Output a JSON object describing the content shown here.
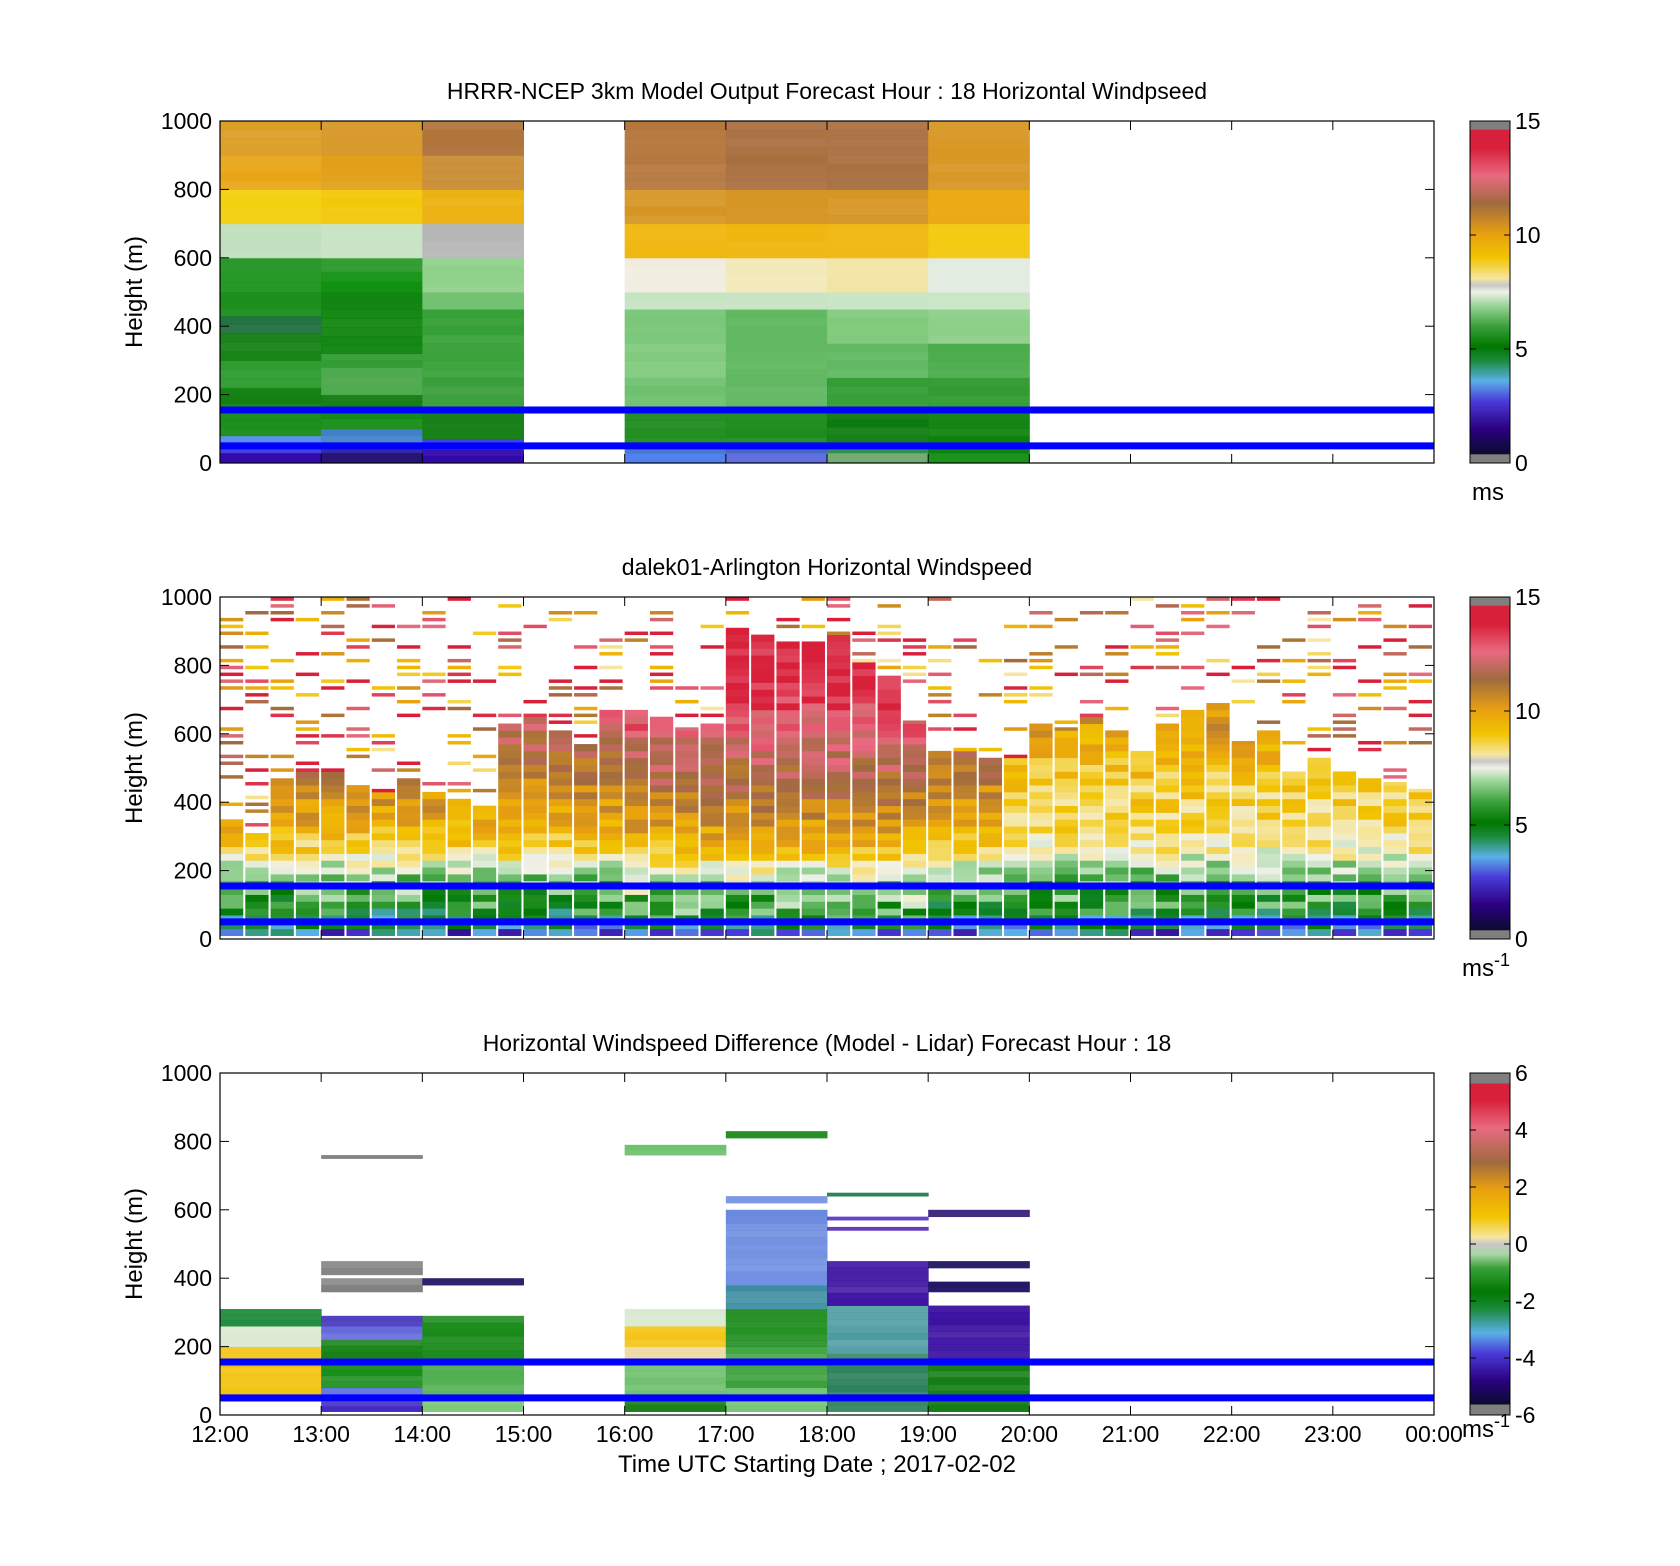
{
  "chart_data": [
    {
      "type": "heatmap",
      "title": "HRRR-NCEP 3km Model Output   Forecast Hour : 18 Horizontal Windpseed",
      "xlabel": "",
      "ylabel": "Height (m)",
      "xlim": [
        12,
        24
      ],
      "ylim": [
        0,
        1000
      ],
      "x_tick_labels": [],
      "y_ticks": [
        0,
        200,
        400,
        600,
        800,
        1000
      ],
      "grid": false,
      "colorbar": {
        "min": 0,
        "max": 15,
        "ticks": [
          0,
          5,
          10,
          15
        ],
        "unit_label": "ms",
        "unit_sup": ""
      },
      "reference_lines_m": [
        50,
        155
      ],
      "reference_line_color": "#0000ff",
      "columns": [
        {
          "hour": 12,
          "profile": [
            [
              0,
              "#2a00a8"
            ],
            [
              30,
              "#3a3ae0"
            ],
            [
              50,
              "#5088e8"
            ],
            [
              80,
              "#138a13"
            ],
            [
              150,
              "#0f7f0f"
            ],
            [
              220,
              "#2a9a2a"
            ],
            [
              300,
              "#128012"
            ],
            [
              380,
              "#1e6e3c"
            ],
            [
              430,
              "#138a13"
            ],
            [
              500,
              "#169016"
            ],
            [
              560,
              "#2a982a"
            ],
            [
              600,
              "#c0dfbc"
            ],
            [
              700,
              "#f2cf0a"
            ],
            [
              800,
              "#e9a516"
            ],
            [
              900,
              "#dc9c22"
            ]
          ]
        },
        {
          "hour": 13,
          "profile": [
            [
              0,
              "#1a0870"
            ],
            [
              30,
              "#2a20a0"
            ],
            [
              60,
              "#4080c8"
            ],
            [
              100,
              "#138a13"
            ],
            [
              160,
              "#0d7a0d"
            ],
            [
              200,
              "#4aa84a"
            ],
            [
              280,
              "#2c9a2c"
            ],
            [
              320,
              "#0a820a"
            ],
            [
              500,
              "#119011"
            ],
            [
              560,
              "#2c9a2c"
            ],
            [
              600,
              "#c8e4c4"
            ],
            [
              700,
              "#f2c705"
            ],
            [
              800,
              "#e2a018"
            ],
            [
              900,
              "#d8992a"
            ]
          ]
        },
        {
          "hour": 14,
          "profile": [
            [
              0,
              "#2a00a8"
            ],
            [
              40,
              "#3a3ae0"
            ],
            [
              70,
              "#0d7a0d"
            ],
            [
              150,
              "#3a9e3a"
            ],
            [
              250,
              "#35a035"
            ],
            [
              450,
              "#6cbf6c"
            ],
            [
              500,
              "#8ed08a"
            ],
            [
              600,
              "#b5b5b5"
            ],
            [
              700,
              "#ecb010"
            ],
            [
              800,
              "#c8892e"
            ],
            [
              900,
              "#b0733a"
            ]
          ]
        },
        {
          "hour": 16,
          "profile": [
            [
              0,
              "#4a7cf0"
            ],
            [
              30,
              "#3f6cc8"
            ],
            [
              50,
              "#1a8a1a"
            ],
            [
              150,
              "#6cbf6c"
            ],
            [
              250,
              "#7ec97a"
            ],
            [
              350,
              "#75c575"
            ],
            [
              450,
              "#c4e3c0"
            ],
            [
              500,
              "#f0ede0"
            ],
            [
              600,
              "#f0b60c"
            ],
            [
              700,
              "#d59420"
            ],
            [
              800,
              "#b3753a"
            ],
            [
              900,
              "#b3753a"
            ]
          ]
        },
        {
          "hour": 17,
          "profile": [
            [
              0,
              "#5a6ae0"
            ],
            [
              30,
              "#3a62c0"
            ],
            [
              50,
              "#1a8a1a"
            ],
            [
              150,
              "#62b862"
            ],
            [
              250,
              "#60b860"
            ],
            [
              450,
              "#c8e4c4"
            ],
            [
              500,
              "#f3e9b8"
            ],
            [
              600,
              "#f0b60c"
            ],
            [
              700,
              "#d59420"
            ],
            [
              800,
              "#a86e3e"
            ],
            [
              900,
              "#a86e3e"
            ]
          ]
        },
        {
          "hour": 18,
          "profile": [
            [
              0,
              "#6aa86a"
            ],
            [
              30,
              "#2a8a4a"
            ],
            [
              60,
              "#0d7a0d"
            ],
            [
              150,
              "#2e9a2e"
            ],
            [
              250,
              "#60b860"
            ],
            [
              350,
              "#7ec97a"
            ],
            [
              450,
              "#c8e4c4"
            ],
            [
              500,
              "#f2e4a4"
            ],
            [
              600,
              "#f0b60c"
            ],
            [
              700,
              "#d59420"
            ],
            [
              800,
              "#a86e3e"
            ],
            [
              900,
              "#a86e3e"
            ]
          ]
        },
        {
          "hour": 19,
          "profile": [
            [
              0,
              "#0a8a0a"
            ],
            [
              30,
              "#0a800a"
            ],
            [
              150,
              "#2e9a2e"
            ],
            [
              250,
              "#4aac4a"
            ],
            [
              350,
              "#8ccf88"
            ],
            [
              450,
              "#c8e4c4"
            ],
            [
              500,
              "#e2ece0"
            ],
            [
              600,
              "#f2c807"
            ],
            [
              700,
              "#eda812"
            ],
            [
              800,
              "#d89622"
            ],
            [
              900,
              "#d89622"
            ]
          ]
        }
      ]
    },
    {
      "type": "heatmap",
      "title": "dalek01-Arlington  Horizontal Windspeed",
      "xlabel": "",
      "ylabel": "Height (m)",
      "xlim": [
        12,
        24
      ],
      "ylim": [
        0,
        1000
      ],
      "x_tick_labels": [],
      "y_ticks": [
        0,
        200,
        400,
        600,
        800,
        1000
      ],
      "grid": false,
      "colorbar": {
        "min": 0,
        "max": 15,
        "ticks": [
          0,
          5,
          10,
          15
        ],
        "unit_label": "ms",
        "unit_sup": "-1"
      },
      "reference_lines_m": [
        50,
        155
      ],
      "reference_line_color": "#0000ff",
      "lidar_scan_minutes": 15,
      "top_of_good_data_m": [
        330,
        300,
        460,
        470,
        480,
        440,
        420,
        450,
        420,
        390,
        380,
        620,
        640,
        600,
        560,
        650,
        660,
        640,
        590,
        620,
        900,
        880,
        860,
        860,
        880,
        800,
        760,
        620,
        540,
        540,
        520,
        520,
        620,
        600,
        640,
        600,
        540,
        620,
        650,
        680,
        560,
        600,
        480,
        520,
        480,
        460,
        440,
        420
      ],
      "vertical_profile_speed_ms": [
        [
          0,
          2.5
        ],
        [
          30,
          4.2
        ],
        [
          80,
          5.5
        ],
        [
          150,
          6.3
        ],
        [
          200,
          7.2
        ],
        [
          250,
          8.6
        ],
        [
          330,
          9.7
        ],
        [
          450,
          10.8
        ],
        [
          600,
          12.0
        ],
        [
          750,
          13.2
        ],
        [
          1000,
          13.5
        ]
      ]
    },
    {
      "type": "heatmap",
      "title": "Horizontal Windspeed Difference (Model - Lidar) Forecast Hour : 18",
      "xlabel": "Time UTC  Starting Date ; 2017-02-02",
      "ylabel": "Height (m)",
      "xlim": [
        12,
        24
      ],
      "ylim": [
        0,
        1000
      ],
      "x_tick_labels": [
        "12:00",
        "13:00",
        "14:00",
        "15:00",
        "16:00",
        "17:00",
        "18:00",
        "19:00",
        "20:00",
        "21:00",
        "22:00",
        "23:00",
        "00:00"
      ],
      "y_ticks": [
        0,
        200,
        400,
        600,
        800,
        1000
      ],
      "grid": false,
      "colorbar": {
        "min": -6,
        "max": 6,
        "ticks": [
          -6,
          -4,
          -2,
          0,
          2,
          4,
          6
        ],
        "unit_label": "ms",
        "unit_sup": "-1"
      },
      "reference_lines_m": [
        50,
        155
      ],
      "reference_line_color": "#0000ff",
      "columns": [
        {
          "hour": 12,
          "bands": [
            [
              10,
              40,
              "#ffffff"
            ],
            [
              40,
              200,
              "#f2c10a"
            ],
            [
              200,
              260,
              "#d9e8d0"
            ],
            [
              260,
              310,
              "#1a8a3a"
            ]
          ]
        },
        {
          "hour": 13,
          "bands": [
            [
              10,
              40,
              "#3a20c0"
            ],
            [
              40,
              80,
              "#5a70e0"
            ],
            [
              80,
              150,
              "#138a13"
            ],
            [
              150,
              220,
              "#0f7f0f"
            ],
            [
              220,
              260,
              "#5a60d8"
            ],
            [
              260,
              290,
              "#4a3ac0"
            ],
            [
              360,
              400,
              "#7f7f7f"
            ],
            [
              410,
              450,
              "#7f7f7f"
            ],
            [
              750,
              760,
              "#7f7f7f"
            ]
          ]
        },
        {
          "hour": 14,
          "bands": [
            [
              10,
              50,
              "#7ec97a"
            ],
            [
              50,
              150,
              "#4aac4a"
            ],
            [
              150,
              290,
              "#1a8a1a"
            ],
            [
              380,
              400,
              "#1a1060"
            ]
          ]
        },
        {
          "hour": 16,
          "bands": [
            [
              10,
              50,
              "#0d7a0d"
            ],
            [
              50,
              150,
              "#6cbf6c"
            ],
            [
              150,
              200,
              "#ecd8a0"
            ],
            [
              200,
              260,
              "#f2c10a"
            ],
            [
              260,
              310,
              "#d9e8d0"
            ],
            [
              760,
              790,
              "#6cbf6c"
            ]
          ]
        },
        {
          "hour": 17,
          "bands": [
            [
              10,
              80,
              "#6cbf6c"
            ],
            [
              80,
              200,
              "#3aa03a"
            ],
            [
              200,
              310,
              "#1a8a1a"
            ],
            [
              310,
              380,
              "#3a8aa0"
            ],
            [
              380,
              600,
              "#6a8ae0"
            ],
            [
              620,
              640,
              "#6a8ae0"
            ],
            [
              810,
              830,
              "#1a8a1a"
            ]
          ]
        },
        {
          "hour": 18,
          "bands": [
            [
              10,
              50,
              "#2a7f5a"
            ],
            [
              50,
              180,
              "#2a7f5a"
            ],
            [
              180,
              320,
              "#4a9aa0"
            ],
            [
              320,
              450,
              "#3a10a0"
            ],
            [
              540,
              550,
              "#4a20b0"
            ],
            [
              570,
              580,
              "#5a40c8"
            ],
            [
              640,
              650,
              "#2a7f5a"
            ]
          ]
        },
        {
          "hour": 19,
          "bands": [
            [
              10,
              50,
              "#0d7a0d"
            ],
            [
              50,
              150,
              "#0d7a0d"
            ],
            [
              150,
              320,
              "#3a10a0"
            ],
            [
              360,
              390,
              "#1a1060"
            ],
            [
              430,
              450,
              "#1a1060"
            ],
            [
              580,
              600,
              "#2a1070"
            ]
          ]
        }
      ]
    }
  ]
}
